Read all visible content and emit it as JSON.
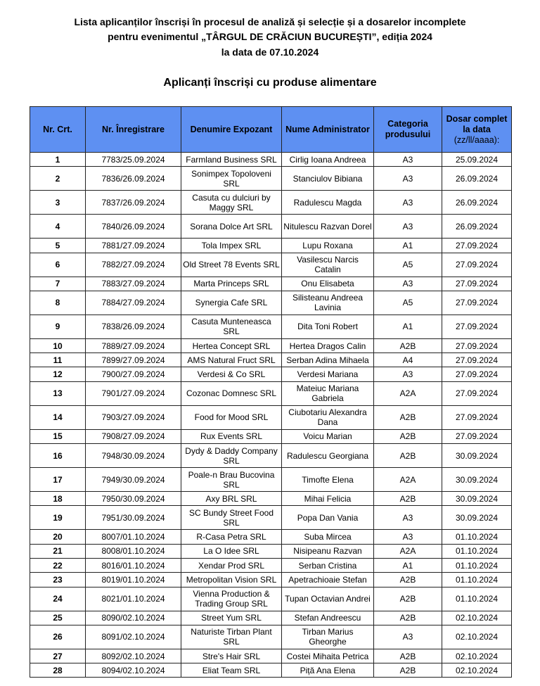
{
  "document": {
    "title_line1": "Lista aplicanților înscriși în procesul de analiză și selecție și a dosarelor incomplete",
    "title_line2": "pentru evenimentul „TÂRGUL DE CRĂCIUN BUCUREȘTI”, ediția 2024",
    "title_line3": "la data de 07.10.2024",
    "subtitle": "Aplicanți înscriși cu produse alimentare"
  },
  "table": {
    "headers": {
      "nr_crt": "Nr. Crt.",
      "nr_inregistrare": "Nr. Înregistrare",
      "denumire": "Denumire Expozant",
      "administrator": "Nume Administrator",
      "categoria": "Categoria produsului",
      "dosar": "Dosar complet la data",
      "dosar_format": "(zz/ll/aaaa):"
    },
    "rows": [
      {
        "nr": "1",
        "inreg": "7783/25.09.2024",
        "denumire": "Farmland Business SRL",
        "admin": "Cirlig Ioana Andreea",
        "cat": "A3",
        "data": "25.09.2024"
      },
      {
        "nr": "2",
        "inreg": "7836/26.09.2024",
        "denumire": "Sonimpex Topoloveni SRL",
        "admin": "Stanciulov Bibiana",
        "cat": "A3",
        "data": "26.09.2024"
      },
      {
        "nr": "3",
        "inreg": "7837/26.09.2024",
        "denumire": "Casuta cu dulciuri by Maggy SRL",
        "admin": "Radulescu Magda",
        "cat": "A3",
        "data": "26.09.2024"
      },
      {
        "nr": "4",
        "inreg": "7840/26.09.2024",
        "denumire": "Sorana Dolce Art SRL",
        "admin": "Nitulescu Razvan Dorel",
        "cat": "A3",
        "data": "26.09.2024"
      },
      {
        "nr": "5",
        "inreg": "7881/27.09.2024",
        "denumire": "Tola Impex SRL",
        "admin": "Lupu Roxana",
        "cat": "A1",
        "data": "27.09.2024"
      },
      {
        "nr": "6",
        "inreg": "7882/27.09.2024",
        "denumire": "Old Street 78 Events SRL",
        "admin": "Vasilescu Narcis Catalin",
        "cat": "A5",
        "data": "27.09.2024"
      },
      {
        "nr": "7",
        "inreg": "7883/27.09.2024",
        "denumire": "Marta Princeps SRL",
        "admin": "Onu Elisabeta",
        "cat": "A3",
        "data": "27.09.2024"
      },
      {
        "nr": "8",
        "inreg": "7884/27.09.2024",
        "denumire": "Synergia Cafe SRL",
        "admin": "Silisteanu Andreea Lavinia",
        "cat": "A5",
        "data": "27.09.2024"
      },
      {
        "nr": "9",
        "inreg": "7838/26.09.2024",
        "denumire": "Casuta Munteneasca SRL",
        "admin": "Dita Toni Robert",
        "cat": "A1",
        "data": "27.09.2024"
      },
      {
        "nr": "10",
        "inreg": "7889/27.09.2024",
        "denumire": "Hertea Concept SRL",
        "admin": "Hertea Dragos Calin",
        "cat": "A2B",
        "data": "27.09.2024"
      },
      {
        "nr": "11",
        "inreg": "7899/27.09.2024",
        "denumire": "AMS Natural Fruct SRL",
        "admin": "Serban Adina Mihaela",
        "cat": "A4",
        "data": "27.09.2024"
      },
      {
        "nr": "12",
        "inreg": "7900/27.09.2024",
        "denumire": "Verdesi & Co SRL",
        "admin": "Verdesi Mariana",
        "cat": "A3",
        "data": "27.09.2024"
      },
      {
        "nr": "13",
        "inreg": "7901/27.09.2024",
        "denumire": "Cozonac Domnesc SRL",
        "admin": "Mateiuc Mariana Gabriela",
        "cat": "A2A",
        "data": "27.09.2024"
      },
      {
        "nr": "14",
        "inreg": "7903/27.09.2024",
        "denumire": "Food for Mood SRL",
        "admin": "Ciubotariu Alexandra Dana",
        "cat": "A2B",
        "data": "27.09.2024"
      },
      {
        "nr": "15",
        "inreg": "7908/27.09.2024",
        "denumire": "Rux Events SRL",
        "admin": "Voicu Marian",
        "cat": "A2B",
        "data": "27.09.2024"
      },
      {
        "nr": "16",
        "inreg": "7948/30.09.2024",
        "denumire": "Dydy & Daddy Company SRL",
        "admin": "Radulescu Georgiana",
        "cat": "A2B",
        "data": "30.09.2024"
      },
      {
        "nr": "17",
        "inreg": "7949/30.09.2024",
        "denumire": "Poale-n Brau Bucovina SRL",
        "admin": "Timofte Elena",
        "cat": "A2A",
        "data": "30.09.2024"
      },
      {
        "nr": "18",
        "inreg": "7950/30.09.2024",
        "denumire": "Axy BRL SRL",
        "admin": "Mihai Felicia",
        "cat": "A2B",
        "data": "30.09.2024"
      },
      {
        "nr": "19",
        "inreg": "7951/30.09.2024",
        "denumire": "SC Bundy Street Food SRL",
        "admin": "Popa Dan Vania",
        "cat": "A3",
        "data": "30.09.2024"
      },
      {
        "nr": "20",
        "inreg": "8007/01.10.2024",
        "denumire": "R-Casa Petra SRL",
        "admin": "Suba Mircea",
        "cat": "A3",
        "data": "01.10.2024"
      },
      {
        "nr": "21",
        "inreg": "8008/01.10.2024",
        "denumire": "La O Idee SRL",
        "admin": "Nisipeanu Razvan",
        "cat": "A2A",
        "data": "01.10.2024"
      },
      {
        "nr": "22",
        "inreg": "8016/01.10.2024",
        "denumire": "Xendar Prod SRL",
        "admin": "Serban Cristina",
        "cat": "A1",
        "data": "01.10.2024"
      },
      {
        "nr": "23",
        "inreg": "8019/01.10.2024",
        "denumire": "Metropolitan Vision SRL",
        "admin": "Apetrachioaie Stefan",
        "cat": "A2B",
        "data": "01.10.2024"
      },
      {
        "nr": "24",
        "inreg": "8021/01.10.2024",
        "denumire": "Vienna Production & Trading Group SRL",
        "admin": "Tupan Octavian Andrei",
        "cat": "A2B",
        "data": "01.10.2024"
      },
      {
        "nr": "25",
        "inreg": "8090/02.10.2024",
        "denumire": "Street Yum SRL",
        "admin": "Stefan Andreescu",
        "cat": "A2B",
        "data": "02.10.2024"
      },
      {
        "nr": "26",
        "inreg": "8091/02.10.2024",
        "denumire": "Naturiste Tirban Plant SRL",
        "admin": "Tirban Marius Gheorghe",
        "cat": "A3",
        "data": "02.10.2024"
      },
      {
        "nr": "27",
        "inreg": "8092/02.10.2024",
        "denumire": "Stre's Hair SRL",
        "admin": "Costei Mihaita Petrica",
        "cat": "A2B",
        "data": "02.10.2024"
      },
      {
        "nr": "28",
        "inreg": "8094/02.10.2024",
        "denumire": "Eliat Team SRL",
        "admin": "Piță Ana Elena",
        "cat": "A2B",
        "data": "02.10.2024"
      }
    ]
  },
  "colors": {
    "header_bg": "#5e90f2",
    "border": "#222222"
  }
}
